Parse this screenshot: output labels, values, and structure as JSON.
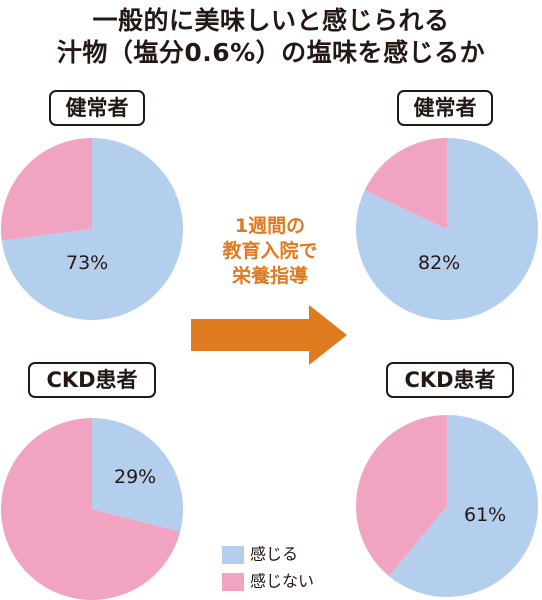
{
  "title": {
    "line1": "一般的に美味しいと感じられる",
    "line2": "汁物（塩分0.6%）の塩味を感じるか"
  },
  "middle_text": [
    "1週間の",
    "教育入院で",
    "栄養指導"
  ],
  "colors": {
    "feel": "#b4cfee",
    "not_feel": "#f0a4c2",
    "accent": "#e07a1f"
  },
  "legend": [
    {
      "label": "感じる",
      "color": "#b4cfee"
    },
    {
      "label": "感じない",
      "color": "#f0a4c2"
    }
  ],
  "chart_data": [
    {
      "type": "pie",
      "group": "健常者",
      "stage": "before",
      "slices": [
        {
          "name": "感じる",
          "value": 73
        },
        {
          "name": "感じない",
          "value": 27
        }
      ],
      "label": "73%"
    },
    {
      "type": "pie",
      "group": "健常者",
      "stage": "after",
      "slices": [
        {
          "name": "感じる",
          "value": 82
        },
        {
          "name": "感じない",
          "value": 18
        }
      ],
      "label": "82%"
    },
    {
      "type": "pie",
      "group": "CKD患者",
      "stage": "before",
      "slices": [
        {
          "name": "感じる",
          "value": 29
        },
        {
          "name": "感じない",
          "value": 71
        }
      ],
      "label": "29%"
    },
    {
      "type": "pie",
      "group": "CKD患者",
      "stage": "after",
      "slices": [
        {
          "name": "感じる",
          "value": 61
        },
        {
          "name": "感じない",
          "value": 39
        }
      ],
      "label": "61%"
    }
  ]
}
